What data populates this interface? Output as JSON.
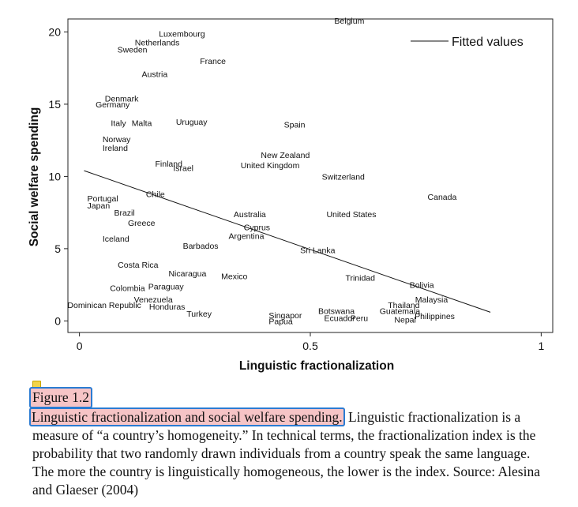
{
  "figure": {
    "number": "Figure 1.2",
    "title": "Linguistic fractionalization and social welfare spending.",
    "body": " Linguistic fractionalization is a measure of “a country’s homogeneity.” In technical terms, the fractionalization index is the probability that two randomly drawn individuals from a country speak the same language. The more the country is linguistically homogeneous, the lower is the index. Source: Alesina and Glaeser (2004)"
  },
  "chart_data": {
    "type": "scatter",
    "xlabel": "Linguistic fractionalization",
    "ylabel": "Social welfare spending",
    "xlim": [
      -0.025,
      1.025
    ],
    "ylim": [
      -0.8,
      20.9
    ],
    "xticks": [
      0,
      0.5,
      1
    ],
    "xtick_labels": [
      "0",
      "0.5",
      "1"
    ],
    "yticks": [
      0,
      5,
      10,
      15,
      20
    ],
    "ytick_labels": [
      "0",
      "5",
      "10",
      "15",
      "20"
    ],
    "grid": false,
    "legend": {
      "position": "top-right",
      "entries": [
        "Fitted values"
      ]
    },
    "fitted_line": {
      "x": [
        0.01,
        0.89
      ],
      "y": [
        10.4,
        0.6
      ]
    },
    "points": [
      {
        "label": "Belgium",
        "x": 0.552,
        "y": 20.8
      },
      {
        "label": "Luxembourg",
        "x": 0.172,
        "y": 19.9
      },
      {
        "label": "Netherlands",
        "x": 0.12,
        "y": 19.3
      },
      {
        "label": "Sweden",
        "x": 0.082,
        "y": 18.8
      },
      {
        "label": "France",
        "x": 0.261,
        "y": 18.0
      },
      {
        "label": "Austria",
        "x": 0.135,
        "y": 17.1
      },
      {
        "label": "Denmark",
        "x": 0.055,
        "y": 15.4
      },
      {
        "label": "Germany",
        "x": 0.035,
        "y": 15.0
      },
      {
        "label": "Italy",
        "x": 0.068,
        "y": 13.7
      },
      {
        "label": "Malta",
        "x": 0.113,
        "y": 13.7
      },
      {
        "label": "Uruguay",
        "x": 0.209,
        "y": 13.8
      },
      {
        "label": "Spain",
        "x": 0.443,
        "y": 13.6
      },
      {
        "label": "Norway",
        "x": 0.05,
        "y": 12.6
      },
      {
        "label": "Ireland",
        "x": 0.05,
        "y": 12.0
      },
      {
        "label": "New Zealand",
        "x": 0.393,
        "y": 11.5
      },
      {
        "label": "Finland",
        "x": 0.164,
        "y": 10.9
      },
      {
        "label": "United Kingdom",
        "x": 0.349,
        "y": 10.8
      },
      {
        "label": "Israel",
        "x": 0.203,
        "y": 10.6
      },
      {
        "label": "Switzerland",
        "x": 0.525,
        "y": 10.0
      },
      {
        "label": "Chile",
        "x": 0.144,
        "y": 8.8
      },
      {
        "label": "Canada",
        "x": 0.754,
        "y": 8.6
      },
      {
        "label": "Portugal",
        "x": 0.017,
        "y": 8.5
      },
      {
        "label": "Japan",
        "x": 0.017,
        "y": 8.0
      },
      {
        "label": "Brazil",
        "x": 0.075,
        "y": 7.5
      },
      {
        "label": "Australia",
        "x": 0.334,
        "y": 7.4
      },
      {
        "label": "United States",
        "x": 0.535,
        "y": 7.4
      },
      {
        "label": "Greece",
        "x": 0.105,
        "y": 6.8
      },
      {
        "label": "Cyprus",
        "x": 0.356,
        "y": 6.5
      },
      {
        "label": "Argentina",
        "x": 0.323,
        "y": 5.9
      },
      {
        "label": "Iceland",
        "x": 0.05,
        "y": 5.7
      },
      {
        "label": "Barbados",
        "x": 0.224,
        "y": 5.2
      },
      {
        "label": "Sri Lanka",
        "x": 0.478,
        "y": 4.9
      },
      {
        "label": "Costa Rica",
        "x": 0.083,
        "y": 3.9
      },
      {
        "label": "Nicaragua",
        "x": 0.193,
        "y": 3.3
      },
      {
        "label": "Mexico",
        "x": 0.307,
        "y": 3.1
      },
      {
        "label": "Trinidad",
        "x": 0.576,
        "y": 3.0
      },
      {
        "label": "Bolivia",
        "x": 0.715,
        "y": 2.5
      },
      {
        "label": "Colombia",
        "x": 0.066,
        "y": 2.3
      },
      {
        "label": "Paraguay",
        "x": 0.149,
        "y": 2.4
      },
      {
        "label": "Venezuela",
        "x": 0.118,
        "y": 1.5
      },
      {
        "label": "Malaysia",
        "x": 0.727,
        "y": 1.5
      },
      {
        "label": "Dominican Republic",
        "x": -0.026,
        "y": 1.1
      },
      {
        "label": "Honduras",
        "x": 0.151,
        "y": 1.0
      },
      {
        "label": "Thailand",
        "x": 0.668,
        "y": 1.1
      },
      {
        "label": "Guatemala",
        "x": 0.65,
        "y": 0.7
      },
      {
        "label": "Botswana",
        "x": 0.517,
        "y": 0.7
      },
      {
        "label": "Turkey",
        "x": 0.232,
        "y": 0.5
      },
      {
        "label": "Singapor",
        "x": 0.41,
        "y": 0.4
      },
      {
        "label": "Philippines",
        "x": 0.726,
        "y": 0.35
      },
      {
        "label": "Ecuador",
        "x": 0.53,
        "y": 0.2
      },
      {
        "label": "Peru",
        "x": 0.587,
        "y": 0.2
      },
      {
        "label": "Nepal",
        "x": 0.682,
        "y": 0.1
      },
      {
        "label": "Papua",
        "x": 0.41,
        "y": 0.0
      }
    ]
  }
}
